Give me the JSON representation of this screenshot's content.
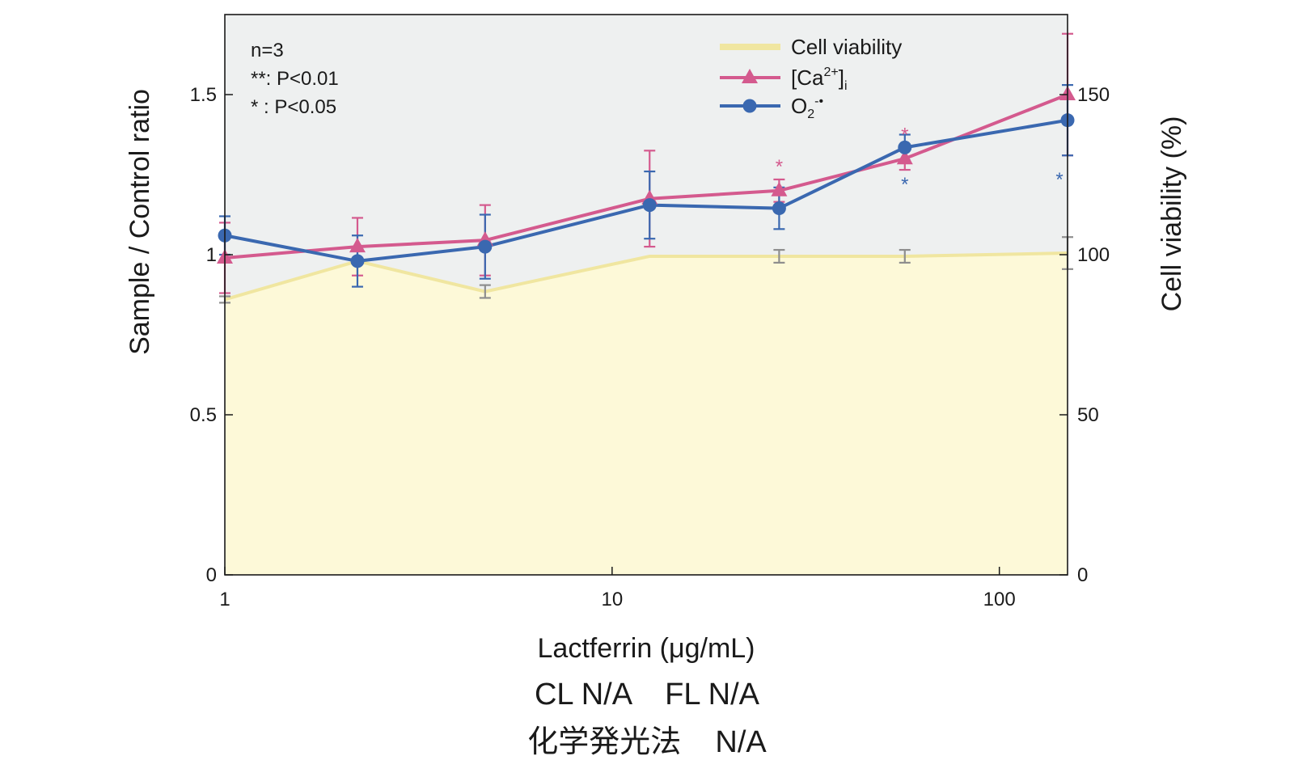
{
  "chart_data": {
    "type": "line",
    "x_scale": "log",
    "xlim": [
      1,
      150
    ],
    "x_ticks": [
      "1",
      "10",
      "100"
    ],
    "xlabel": "Lactferrin (μg/mL)",
    "ylabel_left": "Sample / Control ratio",
    "ylim_left": [
      0,
      1.75
    ],
    "y_ticks_left": [
      "0",
      "0.5",
      "1",
      "1.5"
    ],
    "ylabel_right": "Cell viability (%)",
    "ylim_right": [
      0,
      175
    ],
    "y_ticks_right": [
      "0",
      "50",
      "100",
      "150"
    ],
    "x": [
      1,
      2.2,
      4.7,
      12.5,
      27,
      57,
      150
    ],
    "series": [
      {
        "name": "Cell viability",
        "kind": "area",
        "axis": "right",
        "color": "#f0e6a0",
        "fill": "#fdf9d8",
        "values": [
          86,
          98,
          88.5,
          99.5,
          99.5,
          99.5,
          100.5
        ],
        "errors": [
          1,
          0,
          2,
          0,
          2,
          2,
          5
        ]
      },
      {
        "name": "[Ca2+]i",
        "kind": "line",
        "marker": "triangle",
        "axis": "left",
        "color": "#d45a8e",
        "values": [
          0.99,
          1.025,
          1.045,
          1.175,
          1.2,
          1.3,
          1.5
        ],
        "errors": [
          0.11,
          0.09,
          0.11,
          0.15,
          0.035,
          0.035,
          0.19
        ],
        "significance": [
          "",
          "",
          "",
          "",
          "*",
          "*",
          ""
        ]
      },
      {
        "name": "O2-•",
        "kind": "line",
        "marker": "circle",
        "axis": "left",
        "color": "#3a68b0",
        "values": [
          1.06,
          0.98,
          1.025,
          1.155,
          1.145,
          1.335,
          1.42
        ],
        "errors": [
          0.06,
          0.08,
          0.1,
          0.105,
          0.065,
          0.04,
          0.11
        ],
        "significance": [
          "",
          "",
          "",
          "",
          "",
          "*",
          "*"
        ]
      }
    ],
    "notes": [
      "n=3",
      "**: P<0.01",
      "*  : P<0.05"
    ],
    "legend": {
      "position": "top-right",
      "entries": [
        {
          "text": "Cell viability"
        },
        {
          "text": "[Ca",
          "sup": "2+",
          "tail": "]",
          "sub": "i"
        },
        {
          "text": "O",
          "sub": "2",
          "sup": "-•"
        }
      ]
    },
    "plot_background": "#eef0f0",
    "grid": false
  },
  "caption": {
    "line1": "CL N/A    FL N/A",
    "line2": "化学発光法    N/A"
  }
}
